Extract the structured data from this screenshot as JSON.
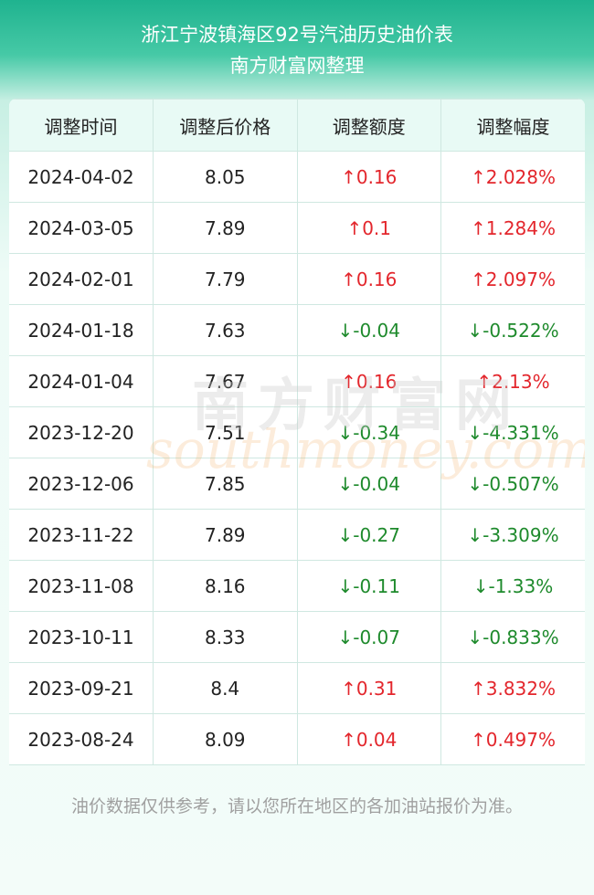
{
  "header": {
    "title": "浙江宁波镇海区92号汽油历史油价表",
    "subtitle": "南方财富网整理"
  },
  "watermark": {
    "brand": "南方财富网",
    "site": "southmoney.com"
  },
  "table": {
    "columns": [
      "调整时间",
      "调整后价格",
      "调整额度",
      "调整幅度"
    ],
    "rows": [
      [
        "2024-04-02",
        8.05,
        "↑0.16",
        "↑2.028%"
      ],
      [
        "2024-03-05",
        7.89,
        "↑0.1",
        "↑1.284%"
      ],
      [
        "2024-02-01",
        7.79,
        "↑0.16",
        "↑2.097%"
      ],
      [
        "2024-01-18",
        7.63,
        "↓-0.04",
        "↓-0.522%"
      ],
      [
        "2024-01-04",
        7.67,
        "↑0.16",
        "↑2.13%"
      ],
      [
        "2023-12-20",
        7.51,
        "↓-0.34",
        "↓-4.331%"
      ],
      [
        "2023-12-06",
        7.85,
        "↓-0.04",
        "↓-0.507%"
      ],
      [
        "2023-11-22",
        7.89,
        "↓-0.27",
        "↓-3.309%"
      ],
      [
        "2023-11-08",
        8.16,
        "↓-0.11",
        "↓-1.33%"
      ],
      [
        "2023-10-11",
        8.33,
        "↓-0.07",
        "↓-0.833%"
      ],
      [
        "2023-09-21",
        8.4,
        "↑0.31",
        "↑3.832%"
      ],
      [
        "2023-08-24",
        8.09,
        "↑0.04",
        "↑0.497%"
      ]
    ],
    "up_color": "#e3262c",
    "down_color": "#1e8a2c"
  },
  "footer": {
    "note": "油价数据仅供参考，请以您所在地区的各加油站报价为准。"
  }
}
